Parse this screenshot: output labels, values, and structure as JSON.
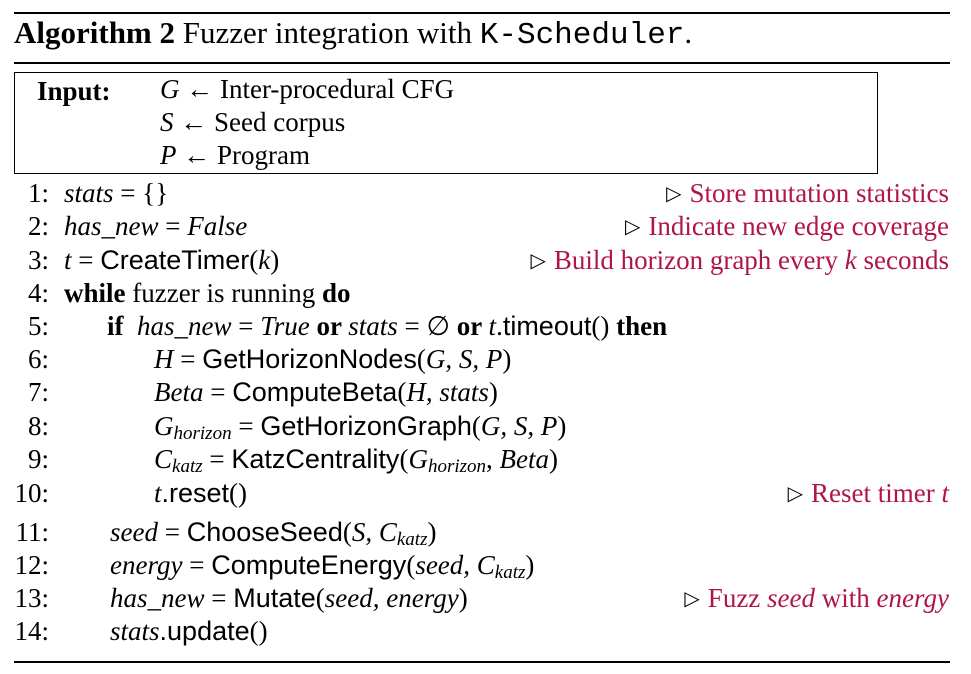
{
  "title": {
    "label": "Algorithm 2",
    "text": "Fuzzer integration with",
    "name": "K-Scheduler",
    "period": "."
  },
  "input": {
    "label": "Input:",
    "rows": [
      {
        "var": "G",
        "arrow": "←",
        "text": "Inter-procedural CFG"
      },
      {
        "var": "S",
        "arrow": "←",
        "text": "Seed corpus"
      },
      {
        "var": "P",
        "arrow": "←",
        "text": "Program"
      }
    ]
  },
  "triangle": "▷",
  "lines": {
    "l1": {
      "num": "1:",
      "a": "stats",
      "b": " = {}",
      "comment": "Store mutation statistics"
    },
    "l2": {
      "num": "2:",
      "a": "has_new",
      "b": " = ",
      "c": "False",
      "comment": "Indicate new edge coverage"
    },
    "l3": {
      "num": "3:",
      "a": "t",
      "b": " = ",
      "fn": "CreateTimer",
      "c": "(",
      "d": "k",
      "e": ")",
      "comment_a": "Build horizon graph every ",
      "comment_b": "k",
      "comment_c": " seconds"
    },
    "l4": {
      "num": "4:",
      "kw1": "while",
      "a": " fuzzer is running ",
      "kw2": "do"
    },
    "l5": {
      "num": "5:",
      "kw1": "if",
      "a": "has_new",
      "b": " = ",
      "c": "True",
      "kw2": " or ",
      "d": "stats",
      "e": " = ∅",
      "kw3": " or ",
      "f": "t",
      "g": ".",
      "fn": "timeout",
      "h": "() ",
      "kw4": "then"
    },
    "l6": {
      "num": "6:",
      "a": "H",
      "b": " = ",
      "fn": "GetHorizonNodes",
      "c": "(",
      "d": "G, S, P",
      "e": ")"
    },
    "l7": {
      "num": "7:",
      "a": "Beta",
      "b": " = ",
      "fn": "ComputeBeta",
      "c": "(",
      "d": "H, stats",
      "e": ")"
    },
    "l8": {
      "num": "8:",
      "a": "G",
      "sub": "horizon",
      "b": " = ",
      "fn": "GetHorizonGraph",
      "c": "(",
      "d": "G, S, P",
      "e": ")"
    },
    "l9": {
      "num": "9:",
      "a": "C",
      "sub": "katz",
      "b": " = ",
      "fn": "KatzCentrality",
      "c": "(",
      "d": "G",
      "sub2": "horizon",
      "e": ", ",
      "f": "Beta",
      "g": ")"
    },
    "l10": {
      "num": "10:",
      "a": "t",
      "fn": ".reset",
      "b": "()",
      "comment_a": "Reset timer ",
      "comment_b": "t"
    },
    "l11": {
      "num": "11:",
      "a": "seed",
      "b": " = ",
      "fn": "ChooseSeed",
      "c": "(",
      "d": "S, C",
      "sub": "katz",
      "e": ")"
    },
    "l12": {
      "num": "12:",
      "a": "energy",
      "b": " = ",
      "fn": "ComputeEnergy",
      "c": "(",
      "d": "seed, C",
      "sub": "katz",
      "e": ")"
    },
    "l13": {
      "num": "13:",
      "a": "has_new",
      "b": " = ",
      "fn": "Mutate",
      "c": "(",
      "d": "seed, energy",
      "e": ")",
      "comment_a": "Fuzz ",
      "comment_b": "seed",
      "comment_c": " with ",
      "comment_d": "energy"
    },
    "l14": {
      "num": "14:",
      "a": "stats",
      "fn": ".update",
      "b": "()"
    }
  }
}
